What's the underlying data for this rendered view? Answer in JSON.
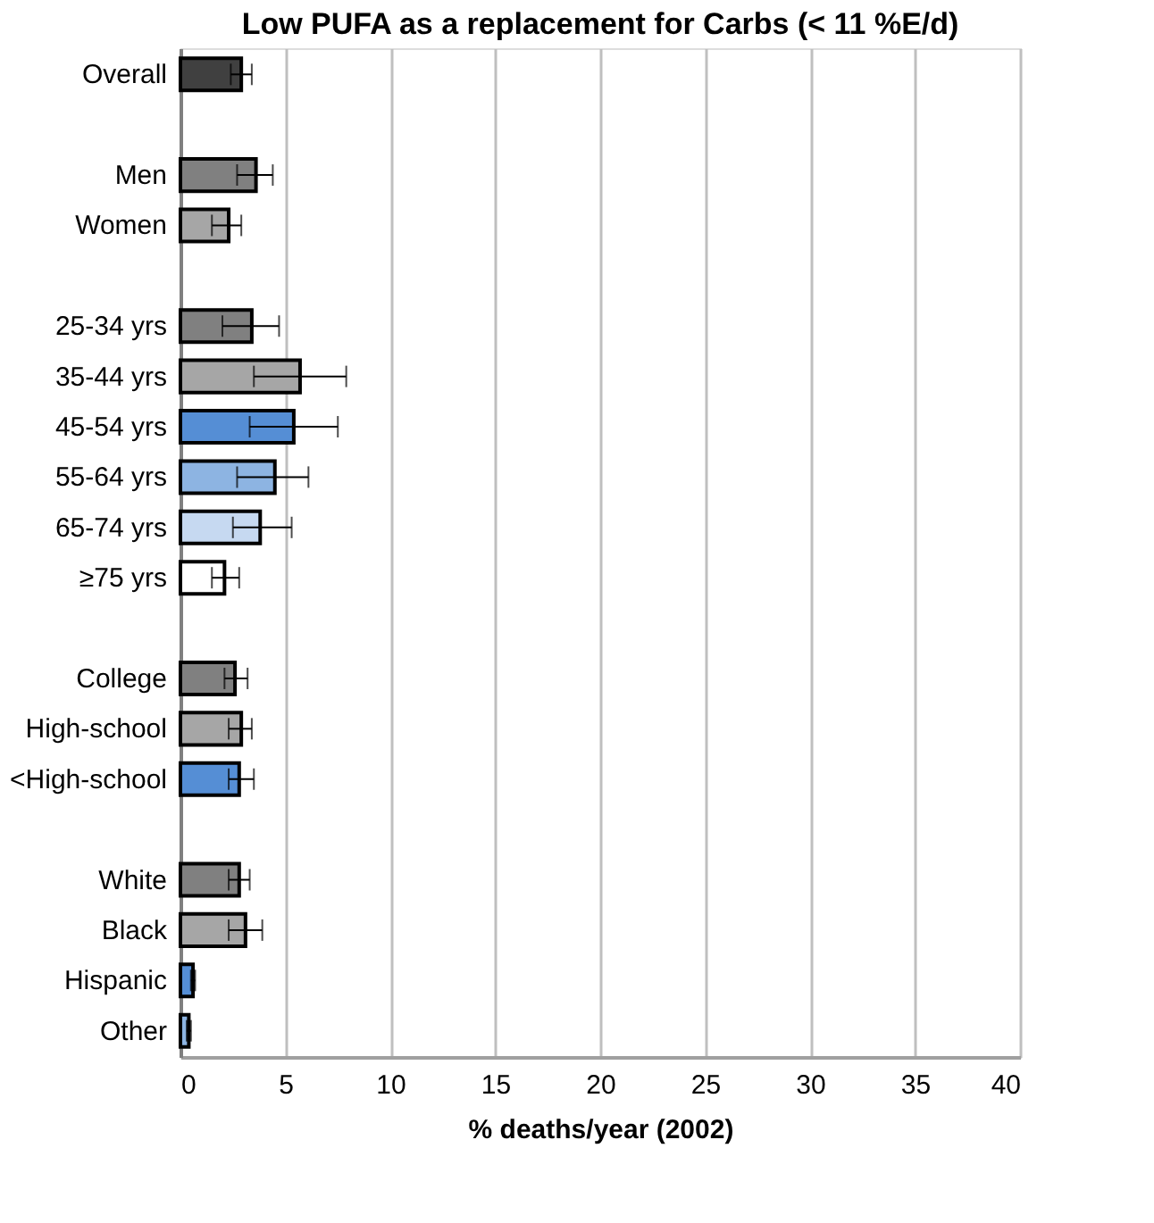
{
  "chart_data": {
    "type": "bar",
    "orientation": "horizontal",
    "title": "Low PUFA as a replacement for Carbs (< 11 %E/d)",
    "xlabel": "% deaths/year (2002)",
    "categories": [
      "Overall",
      null,
      "Men",
      "Women",
      null,
      "25-34 yrs",
      "35-44 yrs",
      "45-54 yrs",
      "55-64 yrs",
      "65-74 yrs",
      "≥75 yrs",
      null,
      "College",
      "High-school",
      "<High-school",
      null,
      "White",
      "Black",
      "Hispanic",
      "Other"
    ],
    "values": [
      2.9,
      null,
      3.6,
      2.3,
      null,
      3.4,
      5.7,
      5.4,
      4.5,
      3.8,
      2.1,
      null,
      2.6,
      2.9,
      2.8,
      null,
      2.8,
      3.1,
      0.6,
      0.4
    ],
    "errors": [
      [
        2.4,
        3.4
      ],
      null,
      [
        2.7,
        4.4
      ],
      [
        1.5,
        2.9
      ],
      null,
      [
        2.0,
        4.7
      ],
      [
        3.5,
        7.9
      ],
      [
        3.3,
        7.5
      ],
      [
        2.7,
        6.1
      ],
      [
        2.5,
        5.3
      ],
      [
        1.5,
        2.8
      ],
      null,
      [
        2.1,
        3.2
      ],
      [
        2.3,
        3.4
      ],
      [
        2.3,
        3.5
      ],
      null,
      [
        2.3,
        3.3
      ],
      [
        2.3,
        3.9
      ],
      [
        0.5,
        0.7
      ],
      [
        0.3,
        0.5
      ]
    ],
    "colors": [
      "#404040",
      null,
      "#808080",
      "#a6a6a6",
      null,
      "#808080",
      "#a6a6a6",
      "#558ed5",
      "#8db4e2",
      "#c6d9f1",
      "#ffffff",
      null,
      "#808080",
      "#a6a6a6",
      "#558ed5",
      null,
      "#808080",
      "#a6a6a6",
      "#558ed5",
      "#8db4e2"
    ],
    "xlim": [
      0,
      40
    ],
    "xticks": [
      0,
      5,
      10,
      15,
      20,
      25,
      30,
      35,
      40
    ],
    "grid": "x"
  }
}
